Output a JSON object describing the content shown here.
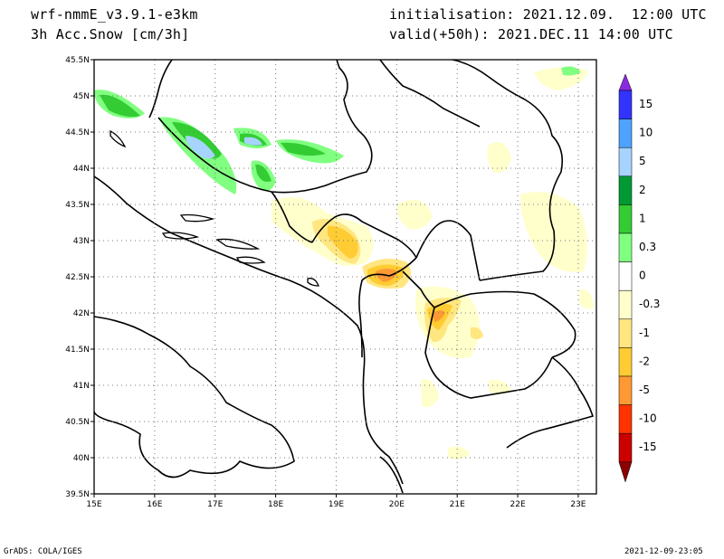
{
  "header": {
    "model": "wrf-nmmE_v3.9.1-e3km",
    "field": "3h Acc.Snow [cm/3h]",
    "init": "initialisation: 2021.12.09.  12:00 UTC",
    "valid": "valid(+50h): 2021.DEC.11 14:00 UTC"
  },
  "map": {
    "lat_labels": [
      "45.5N",
      "45N",
      "44.5N",
      "44N",
      "43.5N",
      "43N",
      "42.5N",
      "42N",
      "41.5N",
      "41N",
      "40.5N",
      "40N",
      "39.5N"
    ],
    "lon_labels": [
      "15E",
      "16E",
      "17E",
      "18E",
      "19E",
      "20E",
      "21E",
      "22E",
      "23E"
    ],
    "lat_range": [
      39.5,
      45.5
    ],
    "lon_range": [
      15,
      23.3
    ],
    "grid": "dotted"
  },
  "colorbar": {
    "labels": [
      "15",
      "10",
      "5",
      "2",
      "1",
      "0.3",
      "0",
      "-0.3",
      "-1",
      "-2",
      "-5",
      "-10",
      "-15"
    ],
    "colors": [
      "#8a2be2",
      "#3333ff",
      "#4da3ff",
      "#a6d4ff",
      "#009933",
      "#33cc33",
      "#80ff80",
      "#ffffff",
      "#ffffcc",
      "#ffe680",
      "#ffcc33",
      "#ff9933",
      "#ff3300",
      "#cc0000",
      "#8b0000"
    ]
  },
  "footer": {
    "left": "GrADS: COLA/IGES",
    "right": "2021-12-09-23:05"
  }
}
